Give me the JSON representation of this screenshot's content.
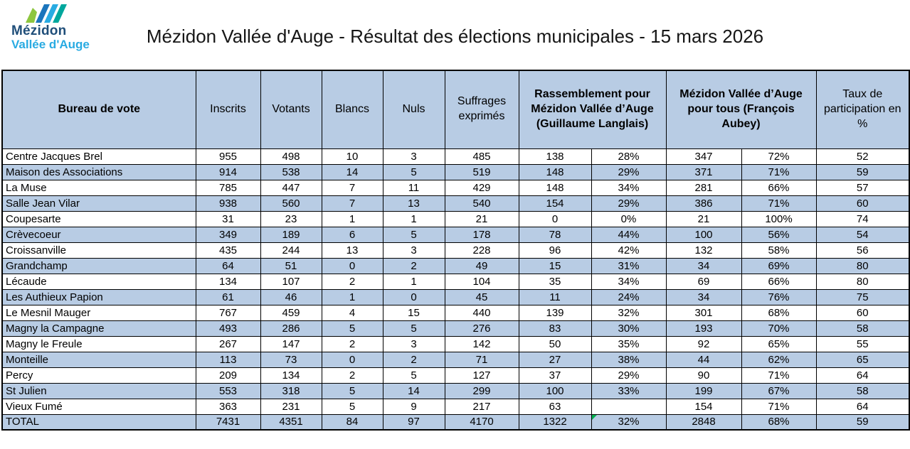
{
  "colors": {
    "header_bg": "#B8CCE4",
    "row_alt": "#B8CCE4",
    "border": "#000000",
    "flag_green": "#00B050",
    "brand_navy": "#1F4E79",
    "brand_cyan": "#29ABE2",
    "logo_green": "#8DC63F",
    "logo_teal": "#00A79D",
    "logo_blue": "#1B75BC"
  },
  "header": {
    "logo": {
      "line1": "Mézidon",
      "line2": "Vallée d'Auge"
    },
    "title": "Mézidon Vallée d'Auge - Résultat des élections municipales - 15 mars 2026"
  },
  "table": {
    "columns": {
      "bureau": "Bureau de vote",
      "inscrits": "Inscrits",
      "votants": "Votants",
      "blancs": "Blancs",
      "nuls": "Nuls",
      "suffrages": "Suffrages exprimés",
      "langlais": "Rassemblement pour Mézidon Vallée d’Auge (Guillaume Langlais)",
      "aubey": "Mézidon Vallée d’Auge pour tous (François Aubey)",
      "taux": "Taux de participation en %"
    },
    "col_keys": [
      "bureau",
      "inscrits",
      "votants",
      "blancs",
      "nuls",
      "suffrages",
      "langlais_votes",
      "langlais_pct",
      "aubey_votes",
      "aubey_pct",
      "taux"
    ],
    "rows": [
      [
        "Centre Jacques Brel",
        "955",
        "498",
        "10",
        "3",
        "485",
        "138",
        "28%",
        "347",
        "72%",
        "52"
      ],
      [
        "Maison des Associations",
        "914",
        "538",
        "14",
        "5",
        "519",
        "148",
        "29%",
        "371",
        "71%",
        "59"
      ],
      [
        "La Muse",
        "785",
        "447",
        "7",
        "11",
        "429",
        "148",
        "34%",
        "281",
        "66%",
        "57"
      ],
      [
        "Salle Jean Vilar",
        "938",
        "560",
        "7",
        "13",
        "540",
        "154",
        "29%",
        "386",
        "71%",
        "60"
      ],
      [
        "Coupesarte",
        "31",
        "23",
        "1",
        "1",
        "21",
        "0",
        "0%",
        "21",
        "100%",
        "74"
      ],
      [
        "Crèvecoeur",
        "349",
        "189",
        "6",
        "5",
        "178",
        "78",
        "44%",
        "100",
        "56%",
        "54"
      ],
      [
        "Croissanville",
        "435",
        "244",
        "13",
        "3",
        "228",
        "96",
        "42%",
        "132",
        "58%",
        "56"
      ],
      [
        "Grandchamp",
        "64",
        "51",
        "0",
        "2",
        "49",
        "15",
        "31%",
        "34",
        "69%",
        "80"
      ],
      [
        "Lécaude",
        "134",
        "107",
        "2",
        "1",
        "104",
        "35",
        "34%",
        "69",
        "66%",
        "80"
      ],
      [
        "Les Authieux Papion",
        "61",
        "46",
        "1",
        "0",
        "45",
        "11",
        "24%",
        "34",
        "76%",
        "75"
      ],
      [
        "Le Mesnil Mauger",
        "767",
        "459",
        "4",
        "15",
        "440",
        "139",
        "32%",
        "301",
        "68%",
        "60"
      ],
      [
        "Magny la Campagne",
        "493",
        "286",
        "5",
        "5",
        "276",
        "83",
        "30%",
        "193",
        "70%",
        "58"
      ],
      [
        "Magny le Freule",
        "267",
        "147",
        "2",
        "3",
        "142",
        "50",
        "35%",
        "92",
        "65%",
        "55"
      ],
      [
        "Monteille",
        "113",
        "73",
        "0",
        "2",
        "71",
        "27",
        "38%",
        "44",
        "62%",
        "65"
      ],
      [
        "Percy",
        "209",
        "134",
        "2",
        "5",
        "127",
        "37",
        "29%",
        "90",
        "71%",
        "64"
      ],
      [
        "St Julien",
        "553",
        "318",
        "5",
        "14",
        "299",
        "100",
        "33%",
        "199",
        "67%",
        "58"
      ],
      [
        "Vieux Fumé",
        "363",
        "231",
        "5",
        "9",
        "217",
        "63",
        "",
        "154",
        "71%",
        "64"
      ],
      [
        "TOTAL",
        "7431",
        "4351",
        "84",
        "97",
        "4170",
        "1322",
        "32%",
        "2848",
        "68%",
        "59"
      ]
    ],
    "flag": {
      "row": 17,
      "col": 7
    }
  }
}
